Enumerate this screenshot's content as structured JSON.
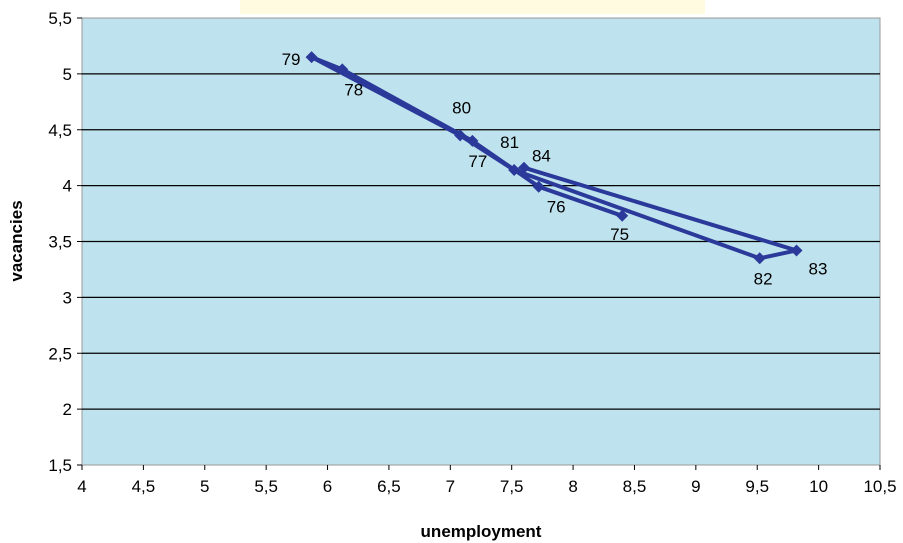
{
  "chart_data": {
    "type": "scatter",
    "title": "",
    "xlabel": "unemployment",
    "ylabel": "vacancies",
    "xlim": [
      4,
      10.5
    ],
    "ylim": [
      1.5,
      5.5
    ],
    "x_ticks": [
      "4",
      "4,5",
      "5",
      "5,5",
      "6",
      "6,5",
      "7",
      "7,5",
      "8",
      "8,5",
      "9",
      "9,5",
      "10",
      "10,5"
    ],
    "y_ticks": [
      "1,5",
      "2",
      "2,5",
      "3",
      "3,5",
      "4",
      "4,5",
      "5",
      "5,5"
    ],
    "grid": true,
    "series": [
      {
        "connected": true,
        "points": [
          {
            "label": "75",
            "x": 8.4,
            "y": 3.73
          },
          {
            "label": "76",
            "x": 7.72,
            "y": 3.99
          },
          {
            "label": "77",
            "x": 7.18,
            "y": 4.4
          },
          {
            "label": "78",
            "x": 6.12,
            "y": 5.04
          },
          {
            "label": "79",
            "x": 5.87,
            "y": 5.15
          },
          {
            "label": "80",
            "x": 7.08,
            "y": 4.45
          },
          {
            "label": "81",
            "x": 7.52,
            "y": 4.14
          },
          {
            "label": "82",
            "x": 9.52,
            "y": 3.35
          },
          {
            "label": "83",
            "x": 9.82,
            "y": 3.42
          },
          {
            "label": "84",
            "x": 7.6,
            "y": 4.16
          }
        ]
      }
    ],
    "colors": {
      "plot_bg": "#bfe3ee",
      "line": "#2b3a9a",
      "grid": "#000000",
      "title_band": "#fffbe0"
    }
  }
}
